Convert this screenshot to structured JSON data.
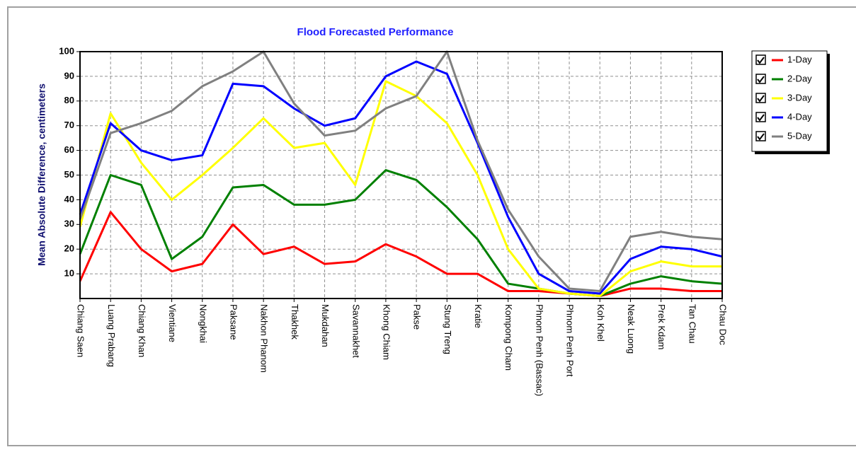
{
  "chart_data": {
    "type": "line",
    "title": "Flood Forecasted Performance",
    "y_label": "Mean Absolute Difference, centimeters",
    "categories": [
      "Chiang Saen",
      "Luang Prabang",
      "Chiang Khan",
      "Vientiane",
      "Nongkhai",
      "Paksane",
      "Nakhon Phanom",
      "Thakhek",
      "Mukdahan",
      "Savannakhet",
      "Khong Chiam",
      "Pakse",
      "Stung Treng",
      "Kratie",
      "Kompong Cham",
      "Phnom Penh (Bassac)",
      "Phnom Penh Port",
      "Koh Khel",
      "Neak Luong",
      "Prek Kdam",
      "Tan Chau",
      "Chau Doc"
    ],
    "series": [
      {
        "name": "1-Day",
        "color": "#ff0000",
        "values": [
          7,
          35,
          20,
          11,
          14,
          30,
          18,
          21,
          14,
          15,
          22,
          17,
          10,
          10,
          3,
          3,
          2,
          1,
          4,
          4,
          3,
          3
        ]
      },
      {
        "name": "2-Day",
        "color": "#008000",
        "values": [
          18,
          50,
          46,
          16,
          25,
          45,
          46,
          38,
          38,
          40,
          52,
          48,
          37,
          24,
          6,
          4,
          2,
          1,
          6,
          9,
          7,
          6
        ]
      },
      {
        "name": "3-Day",
        "color": "#ffff00",
        "values": [
          29,
          75,
          55,
          40,
          50,
          61,
          73,
          61,
          63,
          46,
          88,
          82,
          71,
          50,
          20,
          4,
          2,
          1,
          11,
          15,
          13,
          13
        ]
      },
      {
        "name": "4-Day",
        "color": "#0000ff",
        "values": [
          34,
          71,
          60,
          56,
          58,
          87,
          86,
          77,
          70,
          73,
          90,
          96,
          91,
          63,
          33,
          10,
          3,
          2,
          16,
          21,
          20,
          17
        ]
      },
      {
        "name": "5-Day",
        "color": "#808080",
        "values": [
          32,
          67,
          71,
          76,
          86,
          92,
          100,
          79,
          66,
          68,
          77,
          82,
          100,
          64,
          36,
          17,
          4,
          3,
          25,
          27,
          25,
          24
        ]
      }
    ],
    "ylim": [
      0,
      100
    ],
    "yticks": [
      10,
      20,
      30,
      40,
      50,
      60,
      70,
      80,
      90,
      100
    ],
    "grid": true
  }
}
